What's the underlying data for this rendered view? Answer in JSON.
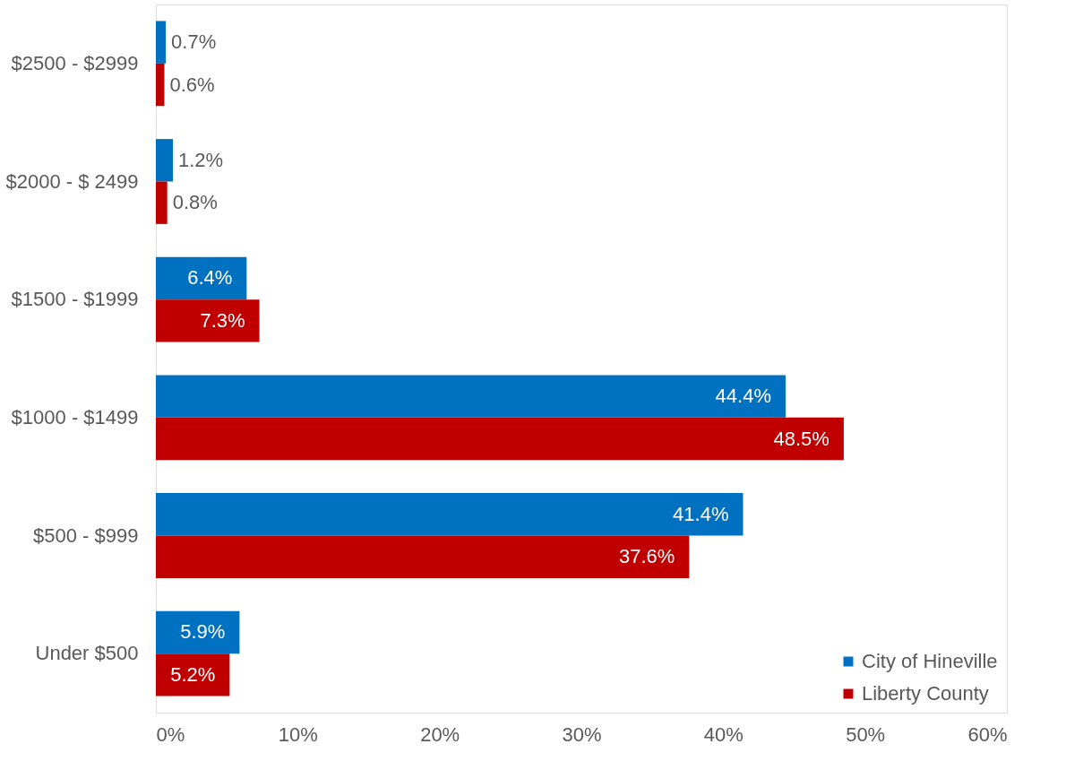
{
  "chart_data": {
    "type": "bar",
    "orientation": "horizontal",
    "categories": [
      "$2500 - $2999",
      "$2000 - $ 2499",
      "$1500 - $1999",
      "$1000 - $1499",
      "$500 - $999",
      "Under $500"
    ],
    "series": [
      {
        "name": "City of Hineville",
        "color": "#0070c0",
        "values": [
          0.7,
          1.2,
          6.4,
          44.4,
          41.4,
          5.9
        ],
        "value_labels": [
          "0.7%",
          "1.2%",
          "6.4%",
          "44.4%",
          "41.4%",
          "5.9%"
        ]
      },
      {
        "name": "Liberty County",
        "color": "#c00000",
        "values": [
          0.6,
          0.8,
          7.3,
          48.5,
          37.6,
          5.2
        ],
        "value_labels": [
          "0.6%",
          "0.8%",
          "7.3%",
          "48.5%",
          "37.6%",
          "5.2%"
        ]
      }
    ],
    "xlim": [
      0,
      60
    ],
    "xticks": [
      {
        "value": 0,
        "label": "0%"
      },
      {
        "value": 10,
        "label": "10%"
      },
      {
        "value": 20,
        "label": "20%"
      },
      {
        "value": 30,
        "label": "30%"
      },
      {
        "value": 40,
        "label": "40%"
      },
      {
        "value": 50,
        "label": "50%"
      },
      {
        "value": 60,
        "label": "60%"
      }
    ],
    "grid": false,
    "legend": "bottom right"
  }
}
